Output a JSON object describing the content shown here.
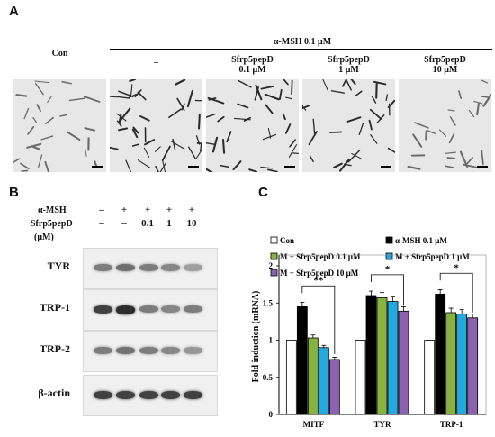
{
  "panels": {
    "a": "A",
    "b": "B",
    "c": "C"
  },
  "panel_a": {
    "con_label": "Con",
    "msh_group_label": "α-MSH  0.1 μM",
    "columns": [
      {
        "line1": "–",
        "line2": ""
      },
      {
        "line1": "Sfrp5pepD",
        "line2": "0.1 μM"
      },
      {
        "line1": "Sfrp5pepD",
        "line2": "1 μM"
      },
      {
        "line1": "Sfrp5pepD",
        "line2": "10 μM"
      }
    ]
  },
  "panel_b": {
    "row_msh_label": "α-MSH",
    "row_pep_label": "Sfrp5pepD",
    "row_unit_label": "(μM)",
    "msh_signs": [
      "–",
      "+",
      "+",
      "+",
      "+"
    ],
    "pep_values": [
      "–",
      "–",
      "0.1",
      "1",
      "10"
    ],
    "blots": [
      {
        "name": "TYR",
        "intensities": [
          0.55,
          0.62,
          0.55,
          0.5,
          0.38
        ]
      },
      {
        "name": "TRP-1",
        "intensities": [
          0.85,
          0.95,
          0.55,
          0.5,
          0.55
        ]
      },
      {
        "name": "TRP-2",
        "intensities": [
          0.55,
          0.6,
          0.55,
          0.5,
          0.42
        ]
      },
      {
        "name": "β-actin",
        "intensities": [
          0.85,
          0.85,
          0.85,
          0.85,
          0.85
        ]
      }
    ]
  },
  "chart_data": {
    "type": "bar",
    "ylabel": "Fold induction (mRNA)",
    "ylim": [
      0,
      2
    ],
    "yticks": [
      "0",
      "0.5",
      "1",
      "1.5",
      "2"
    ],
    "categories": [
      "MITF",
      "TYR",
      "TRP-1"
    ],
    "series": [
      {
        "name": "Con",
        "color": "#ffffff",
        "values": [
          1.0,
          1.0,
          1.0
        ],
        "errors": [
          0,
          0,
          0
        ]
      },
      {
        "name": "α-MSH   0.1 μM",
        "color": "#000000",
        "values": [
          1.45,
          1.6,
          1.62
        ],
        "errors": [
          0.06,
          0.06,
          0.06
        ]
      },
      {
        "name": "M + Sfrp5pepD 0.1 μM",
        "color": "#86b340",
        "values": [
          1.03,
          1.57,
          1.37
        ],
        "errors": [
          0.04,
          0.07,
          0.06
        ]
      },
      {
        "name": "M + Sfrp5pepD 1 μM",
        "color": "#23a9e1",
        "values": [
          0.9,
          1.52,
          1.35
        ],
        "errors": [
          0.03,
          0.06,
          0.06
        ]
      },
      {
        "name": "M + Sfrp5pepD 10 μM",
        "color": "#8a62b0",
        "values": [
          0.74,
          1.39,
          1.3
        ],
        "errors": [
          0.03,
          0.06,
          0.05
        ]
      }
    ],
    "significance": [
      "**",
      "*",
      "*"
    ],
    "legend": [
      {
        "name": "Con",
        "color": "#ffffff"
      },
      {
        "name": "α-MSH   0.1 μM",
        "color": "#000000"
      },
      {
        "name": "M + Sfrp5pepD 0.1 μM",
        "color": "#86b340"
      },
      {
        "name": "M + Sfrp5pepD 1 μM",
        "color": "#23a9e1"
      },
      {
        "name": "M + Sfrp5pepD 10 μM",
        "color": "#8a62b0"
      }
    ]
  }
}
